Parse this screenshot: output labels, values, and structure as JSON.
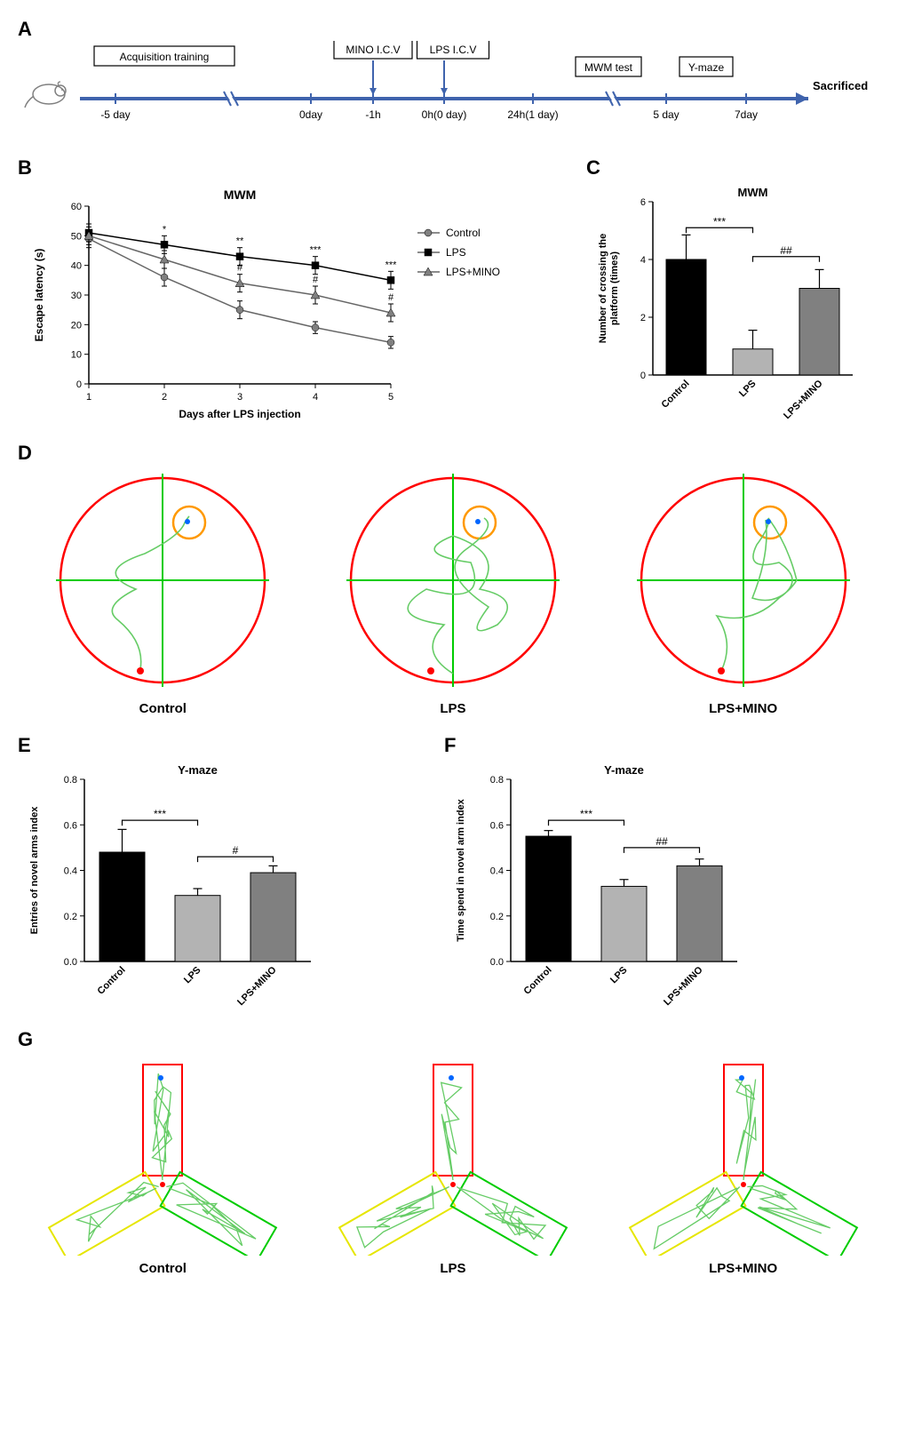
{
  "panelA": {
    "label": "A",
    "mouse_color": "#808080",
    "timeline_color": "#3f63ad",
    "arrow_color": "#3f63ad",
    "boxes": {
      "acq": "Acquisition training",
      "mino": "MINO I.C.V",
      "lps": "LPS I.C.V",
      "mwm": "MWM test",
      "ymaze": "Y-maze"
    },
    "ticks": [
      "-5 day",
      "0day",
      "-1h",
      "0h(0 day)",
      "24h(1 day)",
      "5 day",
      "7day"
    ],
    "sacrificed": "Sacrificed"
  },
  "panelB": {
    "label": "B",
    "chart": {
      "type": "line",
      "title": "MWM",
      "xlabel": "Days after LPS injection",
      "ylabel": "Escape latency (s)",
      "title_fontsize": 14,
      "label_fontsize": 12,
      "xlim": [
        1,
        5
      ],
      "ylim": [
        0,
        60
      ],
      "ytick_step": 10,
      "xticks": [
        1,
        2,
        3,
        4,
        5
      ],
      "series": [
        {
          "name": "Control",
          "marker": "circle",
          "color": "#808080",
          "values": [
            49,
            36,
            25,
            19,
            14
          ],
          "err": [
            3,
            3,
            3,
            2,
            2
          ]
        },
        {
          "name": "LPS",
          "marker": "square",
          "color": "#000000",
          "values": [
            51,
            47,
            43,
            40,
            35
          ],
          "err": [
            3,
            3,
            3,
            3,
            3
          ]
        },
        {
          "name": "LPS+MINO",
          "marker": "triangle",
          "color": "#808080",
          "values": [
            50,
            42,
            34,
            30,
            24
          ],
          "err": [
            3,
            3,
            3,
            3,
            3
          ]
        }
      ],
      "annotations": {
        "LPS": {
          "2": "*",
          "3": "**",
          "4": "***",
          "5": "***"
        },
        "LPS+MINO": {
          "3": "#",
          "4": "#",
          "5": "#"
        }
      },
      "legend_items": [
        "Control",
        "LPS",
        "LPS+MINO"
      ]
    }
  },
  "panelC": {
    "label": "C",
    "chart": {
      "type": "bar",
      "title": "MWM",
      "ylabel": "Number of crossing the\nplatform (times)",
      "ylim": [
        0,
        6
      ],
      "ytick_step": 2,
      "categories": [
        "Control",
        "LPS",
        "LPS+MINO"
      ],
      "values": [
        4.0,
        0.9,
        3.0
      ],
      "err": [
        0.85,
        0.65,
        0.65
      ],
      "bar_colors": [
        "#000000",
        "#b3b3b3",
        "#808080"
      ],
      "bar_width": 0.6,
      "sig": [
        {
          "from": 0,
          "to": 1,
          "label": "***",
          "y": 5.1
        },
        {
          "from": 1,
          "to": 2,
          "label": "##",
          "y": 4.1
        }
      ]
    }
  },
  "panelD": {
    "label": "D",
    "plots": [
      {
        "caption": "Control"
      },
      {
        "caption": "LPS"
      },
      {
        "caption": "LPS+MINO"
      }
    ],
    "arena_color": "#ff0000",
    "cross_color": "#00cc00",
    "platform_color": "#ff9900",
    "path_color": "#66cc66",
    "start_color": "#ff0000",
    "end_color": "#0066ff"
  },
  "panelE": {
    "label": "E",
    "chart": {
      "type": "bar",
      "title": "Y-maze",
      "ylabel": "Entries of novel arms index",
      "ylim": [
        0,
        0.8
      ],
      "ytick_step": 0.2,
      "categories": [
        "Control",
        "LPS",
        "LPS+MINO"
      ],
      "values": [
        0.48,
        0.29,
        0.39
      ],
      "err": [
        0.1,
        0.03,
        0.03
      ],
      "bar_colors": [
        "#000000",
        "#b3b3b3",
        "#808080"
      ],
      "bar_width": 0.6,
      "sig": [
        {
          "from": 0,
          "to": 1,
          "label": "***",
          "y": 0.62
        },
        {
          "from": 1,
          "to": 2,
          "label": "#",
          "y": 0.46
        }
      ]
    }
  },
  "panelF": {
    "label": "F",
    "chart": {
      "type": "bar",
      "title": "Y-maze",
      "ylabel": "Time spend in novel arm index",
      "ylim": [
        0,
        0.8
      ],
      "ytick_step": 0.2,
      "categories": [
        "Control",
        "LPS",
        "LPS+MINO"
      ],
      "values": [
        0.55,
        0.33,
        0.42
      ],
      "err": [
        0.025,
        0.03,
        0.03
      ],
      "bar_colors": [
        "#000000",
        "#b3b3b3",
        "#808080"
      ],
      "bar_width": 0.6,
      "sig": [
        {
          "from": 0,
          "to": 1,
          "label": "***",
          "y": 0.62
        },
        {
          "from": 1,
          "to": 2,
          "label": "##",
          "y": 0.5
        }
      ]
    }
  },
  "panelG": {
    "label": "G",
    "plots": [
      {
        "caption": "Control"
      },
      {
        "caption": "LPS"
      },
      {
        "caption": "LPS+MINO"
      }
    ],
    "novel_arm_color": "#ff0000",
    "left_arm_color": "#e6e600",
    "right_arm_color": "#00cc00",
    "path_color": "#66cc66"
  },
  "colors": {
    "axis": "#000000",
    "text": "#000000"
  }
}
